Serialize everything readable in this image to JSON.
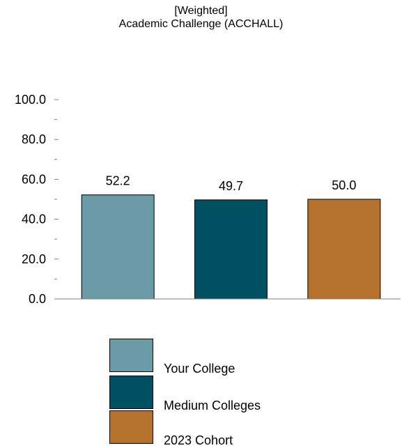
{
  "chart_data": {
    "type": "bar",
    "title": "[Weighted]",
    "subtitle": "Academic Challenge (ACCHALL)",
    "categories": [
      "Your College",
      "Medium Colleges",
      "2023 Cohort"
    ],
    "values": [
      52.2,
      49.7,
      50.0
    ],
    "value_labels": [
      "52.2",
      "49.7",
      "50.0"
    ],
    "colors": [
      "#6a9ba6",
      "#005061",
      "#b4722c"
    ],
    "ylim": [
      0,
      100
    ],
    "yticks": [
      "0.0",
      "20.0",
      "40.0",
      "60.0",
      "80.0",
      "100.0"
    ],
    "ytick_values": [
      0,
      20,
      40,
      60,
      80,
      100
    ],
    "xlabel": "",
    "ylabel": "",
    "grid": false,
    "legend_position": "bottom"
  }
}
